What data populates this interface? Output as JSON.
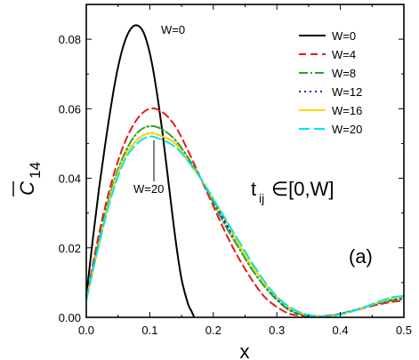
{
  "chart_data": {
    "type": "line",
    "xlabel": "x",
    "ylabel": "C",
    "ylabel_subscript": "14",
    "xlim": [
      0.0,
      0.5
    ],
    "ylim": [
      0.0,
      0.09
    ],
    "xticks": [
      "0.0",
      "0.1",
      "0.2",
      "0.3",
      "0.4",
      "0.5"
    ],
    "yticks": [
      "0.00",
      "0.02",
      "0.04",
      "0.06",
      "0.08"
    ],
    "grid": false,
    "legend_position": "top-right",
    "annotations": {
      "w0_label": "W=0",
      "w20_label": "W=20",
      "formula_t": "t",
      "formula_sub": "ij",
      "formula_rest": "∈[0,W]",
      "panel_label": "(a)"
    },
    "series": [
      {
        "name": "W=0",
        "color": "#000000",
        "dash": "solid",
        "x": [
          0.0,
          0.01,
          0.02,
          0.03,
          0.04,
          0.05,
          0.06,
          0.07,
          0.08,
          0.09,
          0.1,
          0.11,
          0.12,
          0.13,
          0.14,
          0.15,
          0.16,
          0.165,
          0.17
        ],
        "y": [
          0.006,
          0.022,
          0.037,
          0.05,
          0.062,
          0.072,
          0.079,
          0.083,
          0.084,
          0.082,
          0.076,
          0.066,
          0.053,
          0.038,
          0.023,
          0.011,
          0.004,
          0.002,
          0.0
        ]
      },
      {
        "name": "W=4",
        "color": "#e41a1c",
        "dash": "8,5",
        "x": [
          0.0,
          0.02,
          0.04,
          0.06,
          0.08,
          0.1,
          0.12,
          0.14,
          0.16,
          0.18,
          0.2,
          0.22,
          0.24,
          0.26,
          0.28,
          0.3,
          0.32,
          0.34,
          0.36,
          0.38,
          0.4,
          0.42,
          0.44,
          0.46,
          0.48,
          0.5
        ],
        "y": [
          0.005,
          0.024,
          0.039,
          0.05,
          0.057,
          0.06,
          0.059,
          0.055,
          0.048,
          0.04,
          0.032,
          0.024,
          0.017,
          0.011,
          0.006,
          0.003,
          0.001,
          0.0005,
          0.0003,
          0.0005,
          0.001,
          0.0018,
          0.0028,
          0.0037,
          0.0044,
          0.0048
        ]
      },
      {
        "name": "W=8",
        "color": "#2ca02c",
        "dash": "10,3,2,3",
        "x": [
          0.0,
          0.02,
          0.04,
          0.06,
          0.08,
          0.1,
          0.12,
          0.14,
          0.16,
          0.18,
          0.2,
          0.22,
          0.24,
          0.26,
          0.28,
          0.3,
          0.32,
          0.34,
          0.36,
          0.38,
          0.4,
          0.42,
          0.44,
          0.46,
          0.48,
          0.5
        ],
        "y": [
          0.005,
          0.022,
          0.037,
          0.047,
          0.053,
          0.055,
          0.054,
          0.051,
          0.046,
          0.04,
          0.033,
          0.026,
          0.02,
          0.014,
          0.009,
          0.005,
          0.002,
          0.0008,
          0.0003,
          0.0004,
          0.001,
          0.002,
          0.003,
          0.004,
          0.0048,
          0.0053
        ]
      },
      {
        "name": "W=12",
        "color": "#1f1fcc",
        "dash": "2,4",
        "x": [
          0.0,
          0.02,
          0.04,
          0.06,
          0.08,
          0.1,
          0.12,
          0.14,
          0.16,
          0.18,
          0.2,
          0.22,
          0.24,
          0.26,
          0.28,
          0.3,
          0.32,
          0.34,
          0.36,
          0.38,
          0.4,
          0.42,
          0.44,
          0.46,
          0.48,
          0.5
        ],
        "y": [
          0.005,
          0.021,
          0.036,
          0.046,
          0.051,
          0.053,
          0.052,
          0.05,
          0.045,
          0.04,
          0.034,
          0.027,
          0.021,
          0.015,
          0.01,
          0.0055,
          0.0025,
          0.001,
          0.0003,
          0.0003,
          0.0009,
          0.0019,
          0.003,
          0.0042,
          0.0052,
          0.0058
        ]
      },
      {
        "name": "W=16",
        "color": "#ffd700",
        "dash": "solid",
        "x": [
          0.0,
          0.02,
          0.04,
          0.06,
          0.08,
          0.1,
          0.12,
          0.14,
          0.16,
          0.18,
          0.2,
          0.22,
          0.24,
          0.26,
          0.28,
          0.3,
          0.32,
          0.34,
          0.36,
          0.38,
          0.4,
          0.42,
          0.44,
          0.46,
          0.48,
          0.5
        ],
        "y": [
          0.005,
          0.021,
          0.036,
          0.046,
          0.051,
          0.053,
          0.052,
          0.05,
          0.045,
          0.04,
          0.034,
          0.028,
          0.021,
          0.015,
          0.01,
          0.0058,
          0.0027,
          0.0011,
          0.0003,
          0.0003,
          0.0008,
          0.0018,
          0.003,
          0.0043,
          0.0054,
          0.006
        ]
      },
      {
        "name": "W=20",
        "color": "#00e5ee",
        "dash": "12,5",
        "x": [
          0.0,
          0.02,
          0.04,
          0.06,
          0.08,
          0.1,
          0.12,
          0.14,
          0.16,
          0.18,
          0.2,
          0.22,
          0.24,
          0.26,
          0.28,
          0.3,
          0.32,
          0.34,
          0.36,
          0.38,
          0.4,
          0.42,
          0.44,
          0.46,
          0.48,
          0.5
        ],
        "y": [
          0.005,
          0.021,
          0.035,
          0.045,
          0.05,
          0.052,
          0.051,
          0.049,
          0.045,
          0.04,
          0.034,
          0.028,
          0.022,
          0.016,
          0.0105,
          0.006,
          0.003,
          0.0012,
          0.0004,
          0.0003,
          0.0008,
          0.0018,
          0.0031,
          0.0045,
          0.0057,
          0.0062
        ]
      }
    ]
  }
}
